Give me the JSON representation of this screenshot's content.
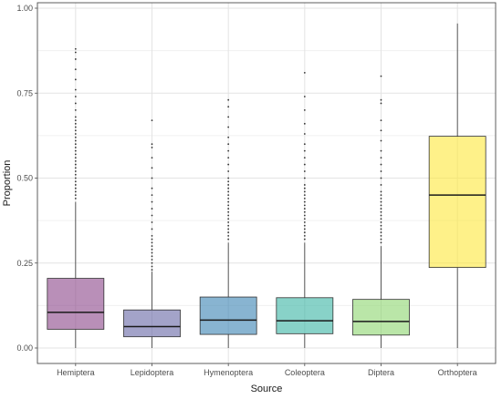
{
  "chart_data": {
    "type": "boxplot",
    "xlabel": "Source",
    "ylabel": "Proportion",
    "ylim": [
      0,
      1
    ],
    "yticks": [
      0,
      0.25,
      0.5,
      0.75,
      1
    ],
    "yticklabels": [
      "0.00",
      "0.25",
      "0.50",
      "0.75",
      "1.00"
    ],
    "grid": true,
    "legend": "none",
    "categories": [
      "Hemiptera",
      "Lepidoptera",
      "Hymenoptera",
      "Coleoptera",
      "Diptera",
      "Orthoptera"
    ],
    "boxes": [
      {
        "name": "Hemiptera",
        "color": "#8e4a8c",
        "min": 0.0,
        "q1": 0.055,
        "median": 0.105,
        "q3": 0.205,
        "whisker_high": 0.43,
        "outliers": [
          0.44,
          0.45,
          0.46,
          0.47,
          0.48,
          0.49,
          0.5,
          0.51,
          0.52,
          0.53,
          0.54,
          0.55,
          0.56,
          0.57,
          0.58,
          0.59,
          0.6,
          0.61,
          0.62,
          0.63,
          0.64,
          0.65,
          0.66,
          0.67,
          0.68,
          0.7,
          0.72,
          0.74,
          0.76,
          0.79,
          0.82,
          0.85,
          0.87,
          0.88
        ]
      },
      {
        "name": "Lepidoptera",
        "color": "#6b6aa8",
        "min": 0.0,
        "q1": 0.033,
        "median": 0.063,
        "q3": 0.112,
        "whisker_high": 0.225,
        "outliers": [
          0.23,
          0.24,
          0.25,
          0.26,
          0.27,
          0.28,
          0.29,
          0.3,
          0.31,
          0.32,
          0.33,
          0.35,
          0.37,
          0.39,
          0.41,
          0.43,
          0.45,
          0.47,
          0.5,
          0.53,
          0.56,
          0.59,
          0.6,
          0.67
        ]
      },
      {
        "name": "Hymenoptera",
        "color": "#3f86b4",
        "min": 0.0,
        "q1": 0.04,
        "median": 0.082,
        "q3": 0.15,
        "whisker_high": 0.31,
        "outliers": [
          0.32,
          0.33,
          0.34,
          0.35,
          0.36,
          0.37,
          0.38,
          0.39,
          0.4,
          0.41,
          0.42,
          0.43,
          0.44,
          0.45,
          0.46,
          0.47,
          0.48,
          0.49,
          0.5,
          0.52,
          0.54,
          0.56,
          0.58,
          0.6,
          0.62,
          0.65,
          0.68,
          0.71,
          0.73
        ]
      },
      {
        "name": "Coleoptera",
        "color": "#3fb7a6",
        "min": 0.0,
        "q1": 0.042,
        "median": 0.08,
        "q3": 0.148,
        "whisker_high": 0.31,
        "outliers": [
          0.32,
          0.33,
          0.34,
          0.35,
          0.36,
          0.37,
          0.38,
          0.39,
          0.4,
          0.41,
          0.42,
          0.43,
          0.44,
          0.45,
          0.46,
          0.47,
          0.48,
          0.5,
          0.52,
          0.54,
          0.56,
          0.58,
          0.6,
          0.63,
          0.66,
          0.7,
          0.74,
          0.81
        ]
      },
      {
        "name": "Diptera",
        "color": "#8fd672",
        "min": 0.0,
        "q1": 0.038,
        "median": 0.078,
        "q3": 0.143,
        "whisker_high": 0.3,
        "outliers": [
          0.31,
          0.32,
          0.33,
          0.34,
          0.35,
          0.36,
          0.37,
          0.38,
          0.39,
          0.4,
          0.41,
          0.42,
          0.43,
          0.44,
          0.45,
          0.46,
          0.48,
          0.5,
          0.52,
          0.54,
          0.56,
          0.58,
          0.61,
          0.64,
          0.67,
          0.72,
          0.73,
          0.8
        ]
      },
      {
        "name": "Orthoptera",
        "color": "#fde940",
        "min": 0.0,
        "q1": 0.237,
        "median": 0.45,
        "q3": 0.623,
        "whisker_high": 0.955,
        "outliers": []
      }
    ]
  }
}
